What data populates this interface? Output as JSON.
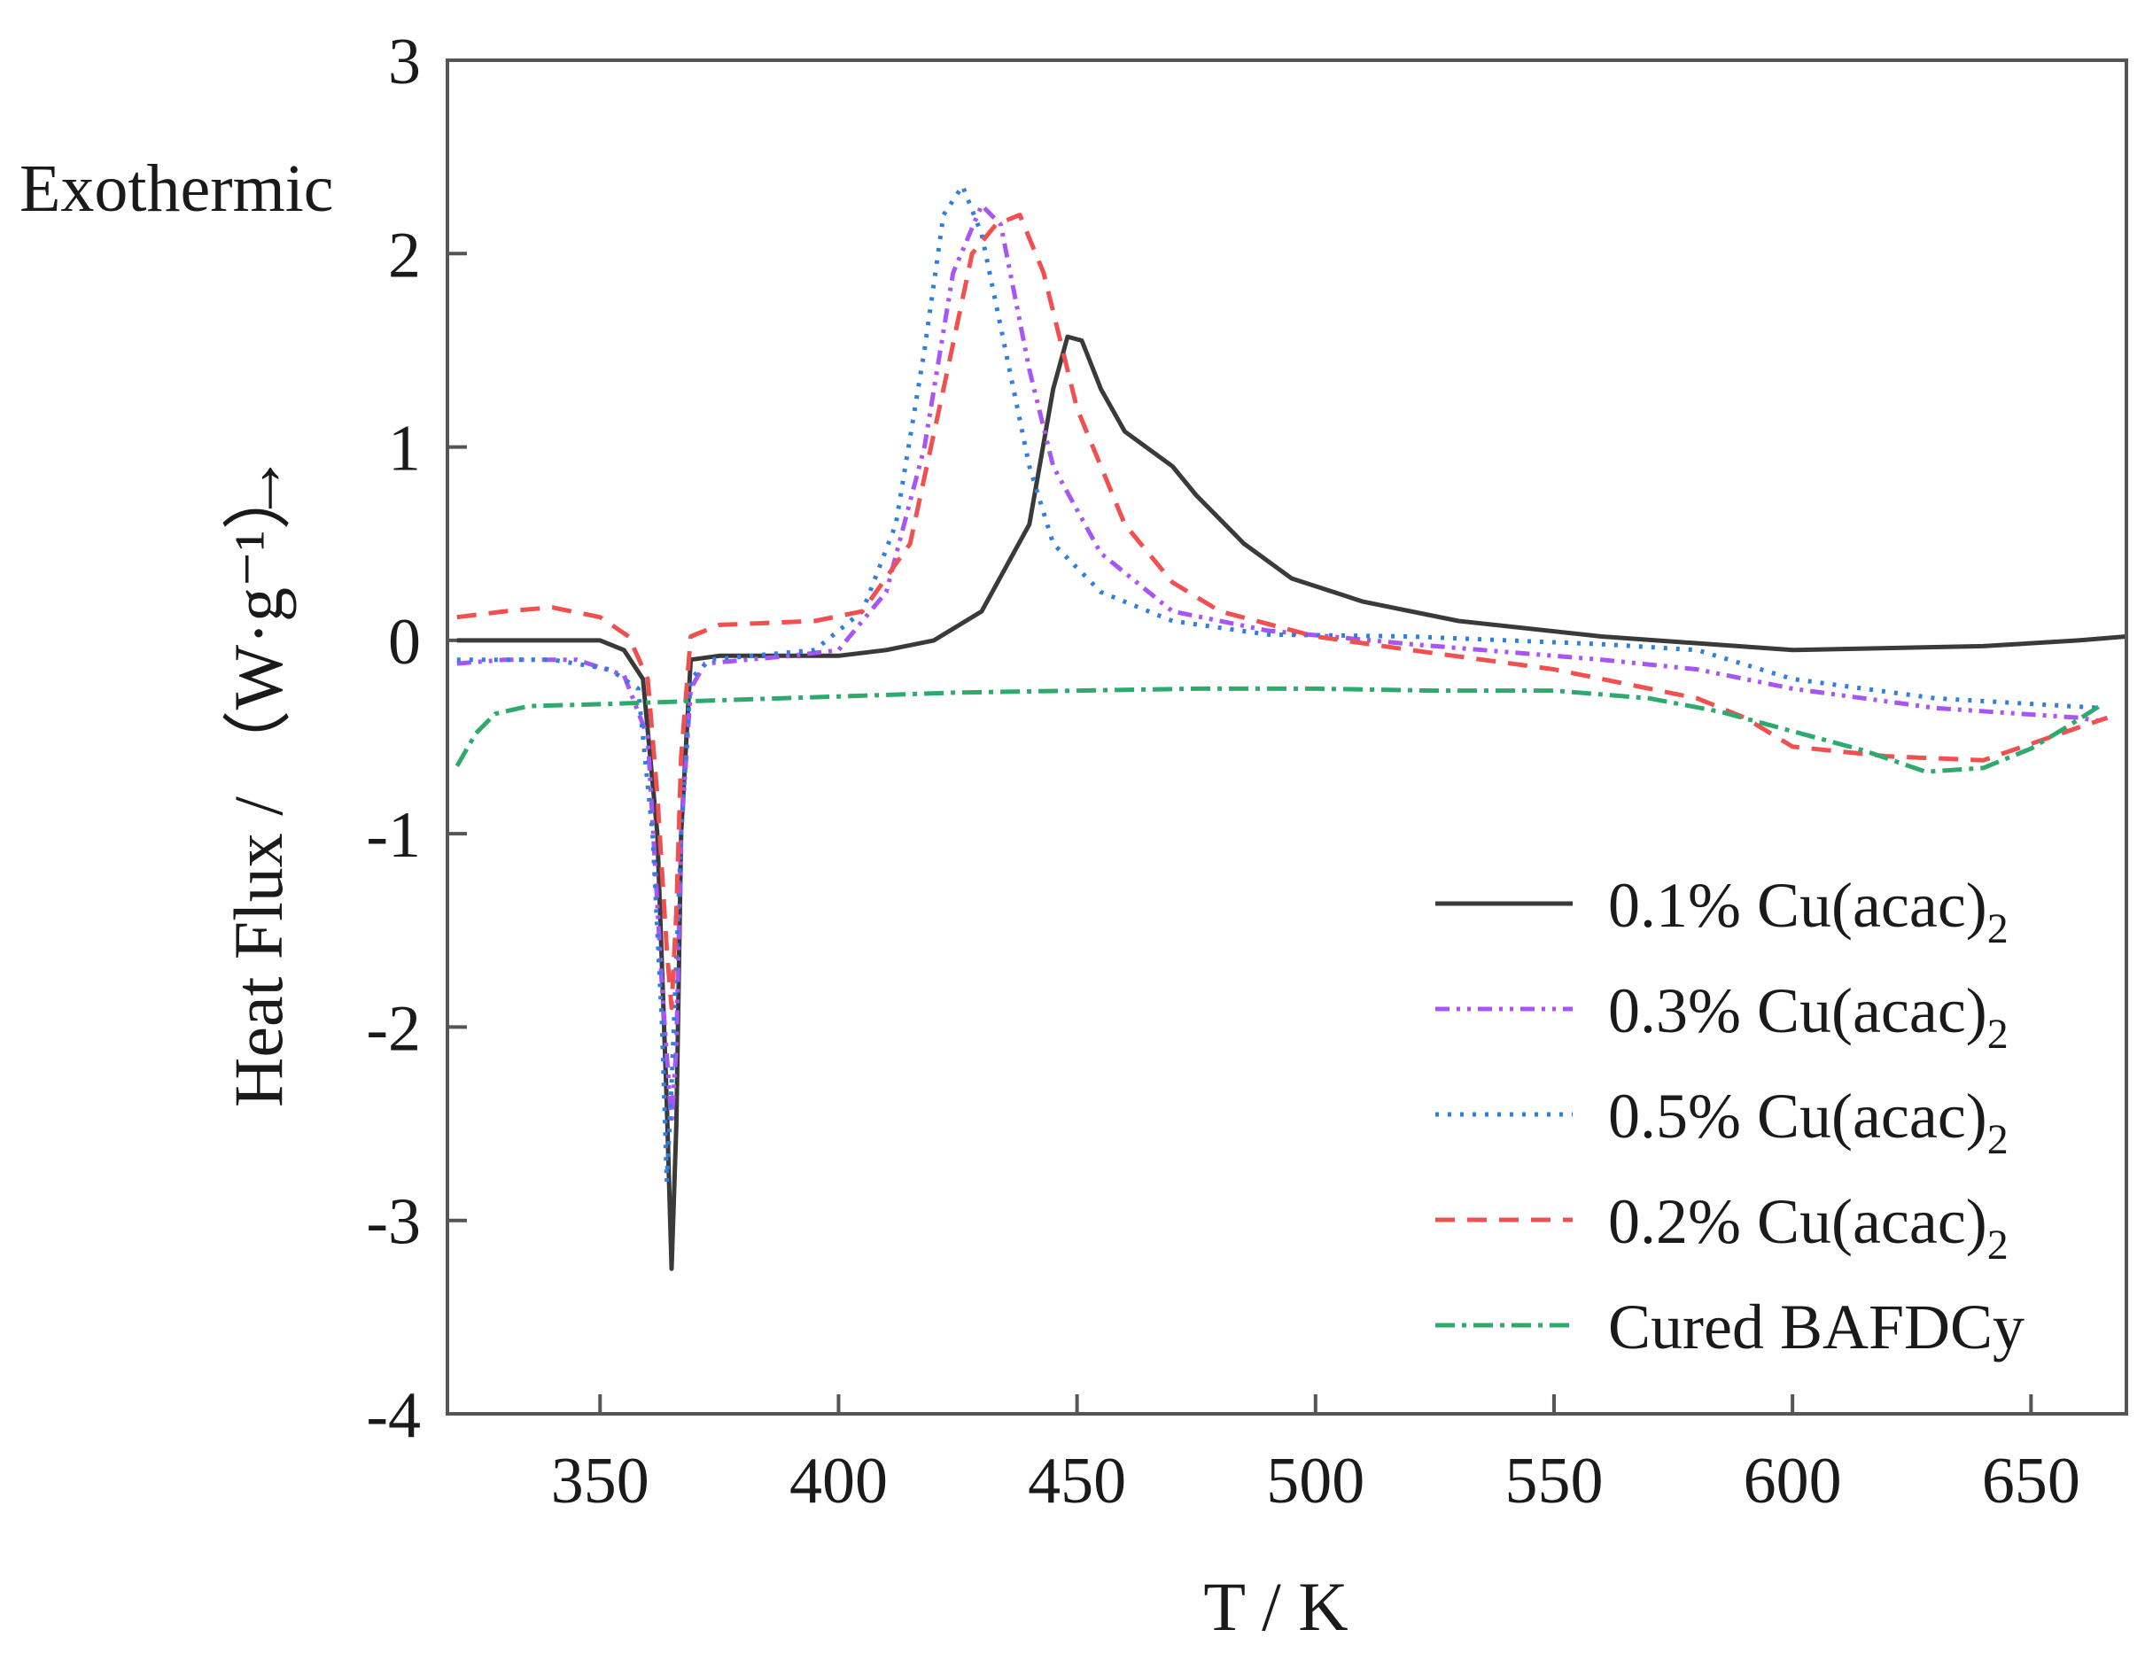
{
  "chart_data": {
    "type": "line",
    "title": "",
    "xlabel": "T / K",
    "ylabel": "Heat Flux / （W·g⁻¹）",
    "ylabel_arrow": "→",
    "annotation": "Exothermic",
    "xlim": [
      318,
      670
    ],
    "ylim": [
      -4,
      3
    ],
    "xticks": [
      350,
      400,
      450,
      500,
      550,
      600,
      650
    ],
    "yticks": [
      3,
      2,
      1,
      0,
      -1,
      -2,
      -3,
      -4
    ],
    "grid": false,
    "legend_position": "bottom-right",
    "series": [
      {
        "name": "0.1% Cu(acac)",
        "subscript": "2",
        "color": "#3a3a3a",
        "dash": "",
        "points": [
          [
            320,
            0.0
          ],
          [
            340,
            0.0
          ],
          [
            350,
            0.0
          ],
          [
            355,
            -0.05
          ],
          [
            359,
            -0.2
          ],
          [
            362,
            -1.0
          ],
          [
            364,
            -2.4
          ],
          [
            365,
            -3.25
          ],
          [
            366,
            -2.5
          ],
          [
            367,
            -1.0
          ],
          [
            369,
            -0.1
          ],
          [
            375,
            -0.08
          ],
          [
            400,
            -0.08
          ],
          [
            410,
            -0.05
          ],
          [
            420,
            0.0
          ],
          [
            430,
            0.15
          ],
          [
            440,
            0.6
          ],
          [
            445,
            1.3
          ],
          [
            448,
            1.57
          ],
          [
            451,
            1.55
          ],
          [
            455,
            1.3
          ],
          [
            460,
            1.08
          ],
          [
            470,
            0.9
          ],
          [
            475,
            0.75
          ],
          [
            485,
            0.5
          ],
          [
            495,
            0.32
          ],
          [
            510,
            0.2
          ],
          [
            530,
            0.1
          ],
          [
            560,
            0.02
          ],
          [
            600,
            -0.05
          ],
          [
            640,
            -0.03
          ],
          [
            660,
            0.0
          ],
          [
            670,
            0.02
          ]
        ]
      },
      {
        "name": "0.3% Cu(acac)",
        "subscript": "2",
        "color": "#a855f7",
        "dash": "16 8 4 8 4 8",
        "points": [
          [
            320,
            -0.12
          ],
          [
            330,
            -0.1
          ],
          [
            345,
            -0.1
          ],
          [
            355,
            -0.18
          ],
          [
            360,
            -0.5
          ],
          [
            363,
            -1.8
          ],
          [
            365,
            -2.5
          ],
          [
            366,
            -2.1
          ],
          [
            367,
            -1.0
          ],
          [
            369,
            -0.25
          ],
          [
            372,
            -0.12
          ],
          [
            390,
            -0.08
          ],
          [
            400,
            -0.05
          ],
          [
            410,
            0.25
          ],
          [
            418,
            1.0
          ],
          [
            424,
            1.9
          ],
          [
            430,
            2.25
          ],
          [
            434,
            2.15
          ],
          [
            440,
            1.4
          ],
          [
            445,
            0.9
          ],
          [
            455,
            0.45
          ],
          [
            470,
            0.15
          ],
          [
            490,
            0.05
          ],
          [
            520,
            -0.02
          ],
          [
            560,
            -0.1
          ],
          [
            580,
            -0.15
          ],
          [
            600,
            -0.25
          ],
          [
            630,
            -0.35
          ],
          [
            660,
            -0.4
          ],
          [
            665,
            -0.42
          ]
        ]
      },
      {
        "name": "0.5% Cu(acac)",
        "subscript": "2",
        "color": "#2f7fe0",
        "dash": "4 10",
        "points": [
          [
            320,
            -0.1
          ],
          [
            340,
            -0.1
          ],
          [
            352,
            -0.15
          ],
          [
            358,
            -0.25
          ],
          [
            361,
            -1.0
          ],
          [
            363,
            -2.0
          ],
          [
            364,
            -2.8
          ],
          [
            365,
            -2.3
          ],
          [
            367,
            -1.0
          ],
          [
            369,
            -0.2
          ],
          [
            373,
            -0.1
          ],
          [
            395,
            -0.05
          ],
          [
            405,
            0.15
          ],
          [
            412,
            0.6
          ],
          [
            418,
            1.5
          ],
          [
            422,
            2.2
          ],
          [
            426,
            2.35
          ],
          [
            430,
            2.1
          ],
          [
            435,
            1.5
          ],
          [
            440,
            0.9
          ],
          [
            445,
            0.5
          ],
          [
            455,
            0.25
          ],
          [
            470,
            0.1
          ],
          [
            490,
            0.03
          ],
          [
            520,
            0.02
          ],
          [
            560,
            -0.02
          ],
          [
            580,
            -0.05
          ],
          [
            600,
            -0.2
          ],
          [
            630,
            -0.3
          ],
          [
            665,
            -0.35
          ]
        ]
      },
      {
        "name": "0.2% Cu(acac)",
        "subscript": "2",
        "color": "#f05050",
        "dash": "22 14",
        "points": [
          [
            320,
            0.12
          ],
          [
            330,
            0.15
          ],
          [
            340,
            0.17
          ],
          [
            350,
            0.12
          ],
          [
            356,
            0.02
          ],
          [
            360,
            -0.2
          ],
          [
            362,
            -0.8
          ],
          [
            364,
            -1.6
          ],
          [
            365,
            -1.9
          ],
          [
            366,
            -1.4
          ],
          [
            367,
            -0.6
          ],
          [
            369,
            0.02
          ],
          [
            375,
            0.08
          ],
          [
            395,
            0.1
          ],
          [
            405,
            0.15
          ],
          [
            415,
            0.5
          ],
          [
            422,
            1.3
          ],
          [
            428,
            2.0
          ],
          [
            433,
            2.15
          ],
          [
            438,
            2.2
          ],
          [
            443,
            1.9
          ],
          [
            450,
            1.2
          ],
          [
            460,
            0.6
          ],
          [
            470,
            0.3
          ],
          [
            480,
            0.15
          ],
          [
            500,
            0.02
          ],
          [
            520,
            -0.05
          ],
          [
            550,
            -0.15
          ],
          [
            580,
            -0.3
          ],
          [
            590,
            -0.4
          ],
          [
            600,
            -0.55
          ],
          [
            620,
            -0.6
          ],
          [
            640,
            -0.62
          ],
          [
            660,
            -0.45
          ],
          [
            666,
            -0.4
          ]
        ]
      },
      {
        "name": "Cured BAFDCy",
        "subscript": "",
        "color": "#2eaa6e",
        "dash": "22 8 5 8",
        "points": [
          [
            320,
            -0.65
          ],
          [
            324,
            -0.48
          ],
          [
            328,
            -0.38
          ],
          [
            335,
            -0.34
          ],
          [
            350,
            -0.33
          ],
          [
            375,
            -0.31
          ],
          [
            400,
            -0.29
          ],
          [
            425,
            -0.27
          ],
          [
            450,
            -0.26
          ],
          [
            475,
            -0.25
          ],
          [
            500,
            -0.25
          ],
          [
            525,
            -0.26
          ],
          [
            550,
            -0.26
          ],
          [
            570,
            -0.3
          ],
          [
            585,
            -0.37
          ],
          [
            600,
            -0.47
          ],
          [
            615,
            -0.57
          ],
          [
            628,
            -0.68
          ],
          [
            640,
            -0.66
          ],
          [
            650,
            -0.56
          ],
          [
            658,
            -0.44
          ],
          [
            665,
            -0.33
          ]
        ]
      }
    ]
  }
}
